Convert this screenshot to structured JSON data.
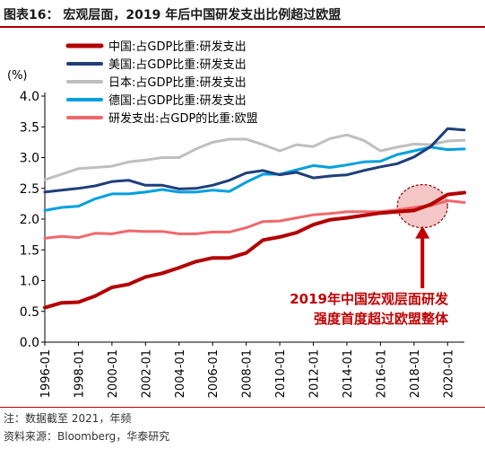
{
  "title": "图表16：  宏观层面，2019 年后中国研发支出比例超过欧盟",
  "notes": {
    "note": "注：数据截至 2021，年频",
    "source": "资料来源：Bloomberg，华泰研究"
  },
  "chart_data": {
    "type": "line",
    "ylabel": "(%)",
    "ylim": [
      0,
      4
    ],
    "yticks": [
      "0.0",
      "0.5",
      "1.0",
      "1.5",
      "2.0",
      "2.5",
      "3.0",
      "3.5",
      "4.0"
    ],
    "xlim": [
      1996,
      2021
    ],
    "xticks": [
      "1996-01",
      "1998-01",
      "2000-01",
      "2002-01",
      "2004-01",
      "2006-01",
      "2008-01",
      "2010-01",
      "2012-01",
      "2014-01",
      "2016-01",
      "2018-01",
      "2020-01"
    ],
    "grid": false,
    "legend_position": "top-left",
    "x": [
      1996,
      1997,
      1998,
      1999,
      2000,
      2001,
      2002,
      2003,
      2004,
      2005,
      2006,
      2007,
      2008,
      2009,
      2010,
      2011,
      2012,
      2013,
      2014,
      2015,
      2016,
      2017,
      2018,
      2019,
      2020,
      2021
    ],
    "series": [
      {
        "name": "中国:占GDP比重:研发支出",
        "color": "#b30000",
        "width": 4,
        "values": [
          0.56,
          0.64,
          0.65,
          0.75,
          0.89,
          0.94,
          1.06,
          1.12,
          1.21,
          1.31,
          1.37,
          1.37,
          1.45,
          1.66,
          1.71,
          1.78,
          1.91,
          1.99,
          2.02,
          2.06,
          2.1,
          2.12,
          2.14,
          2.24,
          2.4,
          2.43
        ]
      },
      {
        "name": "美国:占GDP比重:研发支出",
        "color": "#1f3f7a",
        "width": 3,
        "values": [
          2.44,
          2.47,
          2.5,
          2.54,
          2.61,
          2.63,
          2.55,
          2.55,
          2.49,
          2.5,
          2.55,
          2.63,
          2.75,
          2.79,
          2.72,
          2.76,
          2.67,
          2.7,
          2.72,
          2.79,
          2.85,
          2.9,
          3.01,
          3.18,
          3.47,
          3.45
        ]
      },
      {
        "name": "日本:占GDP比重:研发支出",
        "color": "#bfbfbf",
        "width": 3,
        "values": [
          2.64,
          2.73,
          2.82,
          2.84,
          2.86,
          2.93,
          2.96,
          3.0,
          3.0,
          3.14,
          3.25,
          3.3,
          3.3,
          3.21,
          3.11,
          3.21,
          3.18,
          3.31,
          3.37,
          3.28,
          3.11,
          3.17,
          3.22,
          3.21,
          3.27,
          3.28
        ]
      },
      {
        "name": "德国:占GDP比重:研发支出",
        "color": "#00a0e0",
        "width": 3,
        "values": [
          2.14,
          2.19,
          2.21,
          2.33,
          2.41,
          2.41,
          2.44,
          2.48,
          2.44,
          2.44,
          2.47,
          2.45,
          2.6,
          2.73,
          2.73,
          2.8,
          2.87,
          2.84,
          2.88,
          2.93,
          2.94,
          3.05,
          3.11,
          3.17,
          3.13,
          3.14
        ]
      },
      {
        "name": "研发支出:占GDP的比重:欧盟",
        "color": "#f0686c",
        "width": 3,
        "values": [
          1.69,
          1.72,
          1.7,
          1.77,
          1.76,
          1.81,
          1.8,
          1.8,
          1.76,
          1.76,
          1.79,
          1.79,
          1.86,
          1.96,
          1.97,
          2.02,
          2.07,
          2.09,
          2.12,
          2.12,
          2.12,
          2.15,
          2.19,
          2.22,
          2.3,
          2.27
        ]
      }
    ],
    "annotation": {
      "lines": [
        "2019年中国宏观层面研发",
        "强度首度超过欧盟整体"
      ],
      "color": "#c00000",
      "highlight_x": 2018.5,
      "highlight_y": 2.21
    }
  }
}
